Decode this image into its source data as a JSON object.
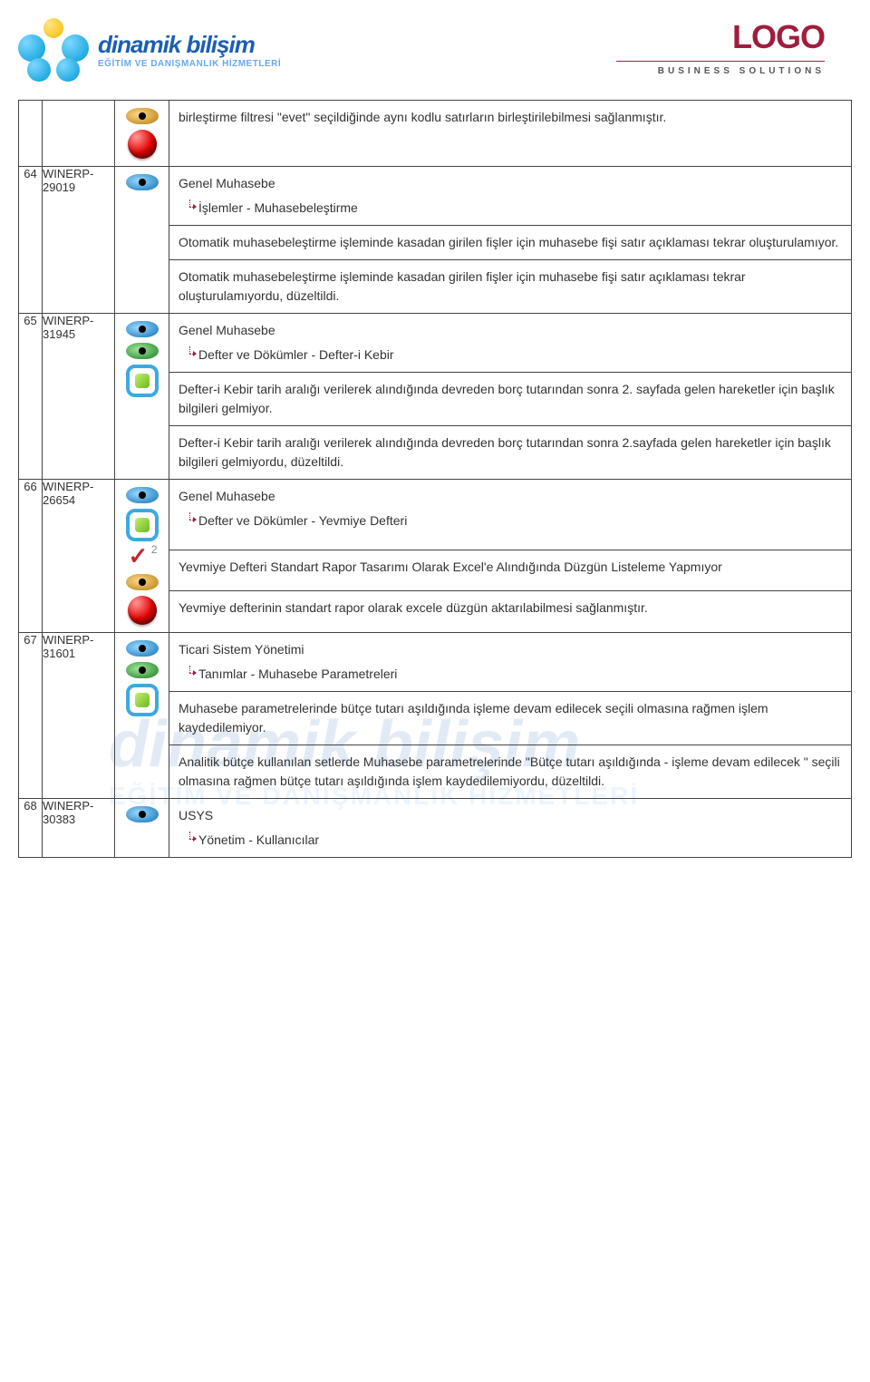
{
  "header": {
    "left_logo_title": "dinamik bilişim",
    "left_logo_sub": "EĞİTİM VE DANIŞMANLIK HİZMETLERİ",
    "right_logo_title": "LOGO",
    "right_logo_sub": "BUSINESS SOLUTIONS"
  },
  "watermark": {
    "title": "dinamik bilişim",
    "sub": "EĞİTİM VE DANIŞMANLIK HİZMETLERİ"
  },
  "rows": [
    {
      "num": "",
      "id": "",
      "icons": [
        "eye-yellow",
        "red-ball"
      ],
      "sections": [
        {
          "text": "birleştirme filtresi \"evet\" seçildiğinde aynı kodlu satırların birleştirilebilmesi sağlanmıştır."
        }
      ]
    },
    {
      "num": "64",
      "id": "WINERP-29019",
      "icons": [
        "eye-blue"
      ],
      "sections": [
        {
          "module": "Genel Muhasebe",
          "sub": "İşlemler - Muhasebeleştirme"
        },
        {
          "text": "Otomatik muhasebeleştirme işleminde kasadan girilen fişler için muhasebe fişi satır açıklaması tekrar oluşturulamıyor."
        },
        {
          "text": "Otomatik muhasebeleştirme işleminde kasadan girilen fişler için muhasebe fişi satır açıklaması tekrar oluşturulamıyordu, düzeltildi."
        }
      ]
    },
    {
      "num": "65",
      "id": "WINERP-31945",
      "icons": [
        "eye-blue",
        "eye-green",
        "green-square"
      ],
      "sections": [
        {
          "module": "Genel Muhasebe",
          "sub": "Defter ve Dökümler - Defter-i Kebir"
        },
        {
          "text": "Defter-i Kebir tarih aralığı verilerek alındığında devreden borç tutarından sonra 2. sayfada gelen hareketler için başlık bilgileri gelmiyor."
        },
        {
          "text": "Defter-i Kebir tarih aralığı verilerek alındığında devreden borç tutarından sonra 2.sayfada gelen hareketler için başlık bilgileri gelmiyordu, düzeltildi."
        }
      ]
    },
    {
      "num": "66",
      "id": "WINERP-26654",
      "icons": [
        "eye-blue",
        "green-square",
        "checkmark",
        "eye-yellow",
        "red-ball"
      ],
      "sections": [
        {
          "module": "Genel Muhasebe",
          "sub": "Defter ve Dökümler - Yevmiye Defteri"
        },
        {
          "text": "Yevmiye Defteri Standart Rapor Tasarımı Olarak Excel'e Alındığında Düzgün Listeleme Yapmıyor"
        },
        {
          "text": "Yevmiye defterinin standart rapor olarak excele düzgün aktarılabilmesi sağlanmıştır."
        }
      ]
    },
    {
      "num": "67",
      "id": "WINERP-31601",
      "icons": [
        "eye-blue",
        "eye-green",
        "green-square"
      ],
      "sections": [
        {
          "module": "Ticari Sistem Yönetimi",
          "sub": "Tanımlar - Muhasebe Parametreleri"
        },
        {
          "text": "Muhasebe parametrelerinde bütçe tutarı aşıldığında işleme devam edilecek seçili olmasına rağmen işlem kaydedilemiyor."
        },
        {
          "text": "Analitik bütçe kullanılan setlerde Muhasebe parametrelerinde \"Bütçe tutarı aşıldığında - işleme devam edilecek \" seçili olmasına rağmen bütçe tutarı aşıldığında işlem kaydedilemiyordu, düzeltildi."
        }
      ]
    },
    {
      "num": "68",
      "id": "WINERP-30383",
      "icons": [
        "eye-blue"
      ],
      "sections": [
        {
          "module": "USYS",
          "sub": "Yönetim - Kullanıcılar"
        }
      ]
    }
  ]
}
